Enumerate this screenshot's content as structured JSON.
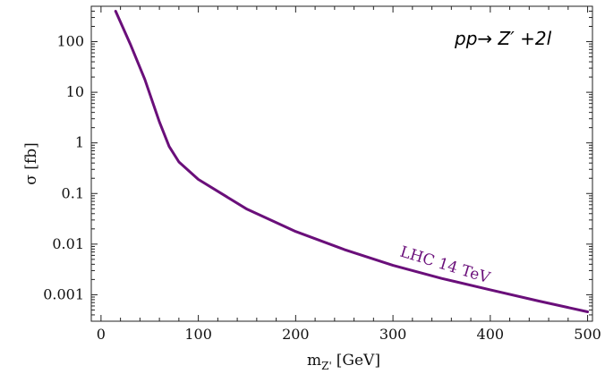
{
  "chart_data": {
    "type": "line",
    "scale": {
      "x": "linear",
      "y": "log"
    },
    "xlabel": {
      "main": "m",
      "sub": "Z'",
      "unit": "[GeV]"
    },
    "ylabel": "σ [fb]",
    "xlim": [
      -10,
      505
    ],
    "ylim": [
      0.0003,
      500
    ],
    "x_ticks": [
      0,
      100,
      200,
      300,
      400,
      500
    ],
    "x_tick_labels": [
      "0",
      "100",
      "200",
      "300",
      "400",
      "500"
    ],
    "y_ticks": [
      0.001,
      0.01,
      0.1,
      1,
      10,
      100
    ],
    "y_tick_labels": [
      "0.001",
      "0.01",
      "0.1",
      "1",
      "10",
      "100"
    ],
    "grid": false,
    "annotations": [
      {
        "text": "pp→ Z′ +2l"
      },
      {
        "text": "LHC 14 TeV"
      }
    ],
    "series": [
      {
        "color": "#6a0f7a",
        "x": [
          15,
          30,
          45,
          60,
          70,
          80,
          100,
          150,
          200,
          250,
          300,
          350,
          400,
          450,
          500
        ],
        "y": [
          400,
          90,
          18,
          2.6,
          0.85,
          0.42,
          0.19,
          0.049,
          0.0178,
          0.0078,
          0.0038,
          0.0021,
          0.00125,
          0.00075,
          0.00046
        ]
      }
    ]
  }
}
